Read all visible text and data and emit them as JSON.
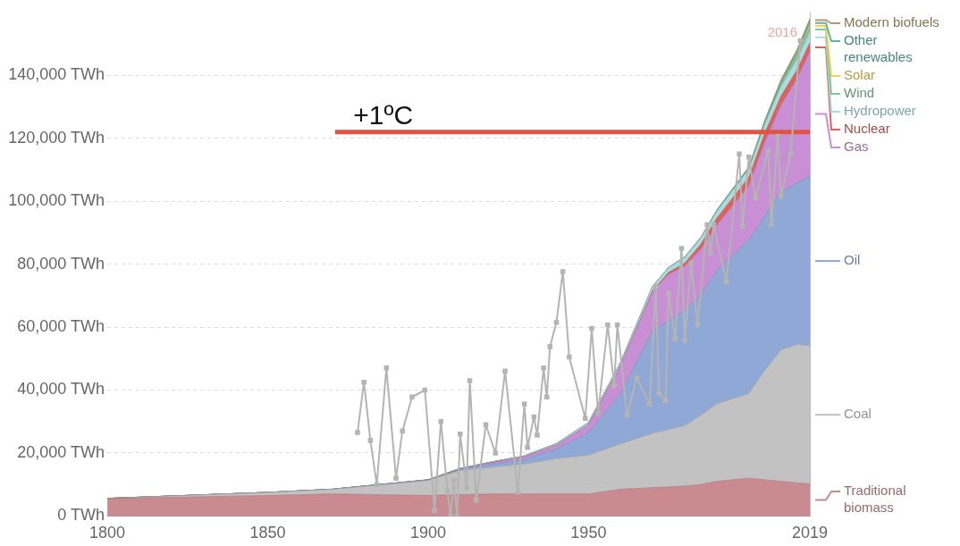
{
  "chart_data": {
    "type": "area",
    "stacked": true,
    "x": [
      1800,
      1850,
      1870,
      1900,
      1910,
      1920,
      1930,
      1940,
      1950,
      1960,
      1970,
      1975,
      1980,
      1985,
      1990,
      2000,
      2005,
      2010,
      2015,
      2019
    ],
    "xlim": [
      1800,
      2019
    ],
    "xticks": [
      1800,
      1850,
      1900,
      1950,
      2019
    ],
    "ylim": [
      0,
      160000
    ],
    "yticks": [
      {
        "value": 0,
        "label": "0 TWh"
      },
      {
        "value": 20000,
        "label": "20,000 TWh"
      },
      {
        "value": 40000,
        "label": "40,000 TWh"
      },
      {
        "value": 60000,
        "label": "60,000 TWh"
      },
      {
        "value": 80000,
        "label": "80,000 TWh"
      },
      {
        "value": 100000,
        "label": "100,000 TWh"
      },
      {
        "value": 120000,
        "label": "120,000 TWh"
      },
      {
        "value": 140000,
        "label": "140,000 TWh"
      }
    ],
    "grid": "y",
    "legend": "right",
    "series": [
      {
        "name": "Traditional\nbiomass",
        "color": "#c98b90",
        "values": [
          5500,
          6500,
          7000,
          6500,
          6800,
          7000,
          7000,
          7000,
          7000,
          8500,
          9000,
          9200,
          9500,
          10000,
          11000,
          12000,
          11500,
          11000,
          10500,
          10200
        ]
      },
      {
        "name": "Coal",
        "color": "#c2c2c2",
        "values": [
          100,
          1000,
          1500,
          4800,
          7600,
          8500,
          9500,
          11200,
          12300,
          14400,
          17200,
          18300,
          19200,
          22000,
          24600,
          26900,
          34800,
          41700,
          44000,
          43900
        ]
      },
      {
        "name": "Oil",
        "color": "#8fa8d5",
        "values": [
          0,
          0,
          0,
          100,
          400,
          1000,
          1500,
          3100,
          7200,
          16000,
          32800,
          34500,
          36700,
          38100,
          42400,
          48800,
          48900,
          50300,
          51200,
          53800
        ]
      },
      {
        "name": "Gas",
        "color": "#c88fd4",
        "values": [
          0,
          0,
          0,
          100,
          200,
          500,
          800,
          1200,
          2500,
          9000,
          12300,
          14800,
          13900,
          14600,
          14400,
          17200,
          23700,
          27500,
          33200,
          39600
        ]
      },
      {
        "name": "Nuclear",
        "color": "#e0625c",
        "values": [
          0,
          0,
          0,
          0,
          0,
          0,
          0,
          0,
          0,
          0,
          300,
          600,
          1000,
          1600,
          2200,
          2700,
          2800,
          2800,
          2800,
          2800
        ]
      },
      {
        "name": "Hydropower",
        "color": "#a8dde0",
        "values": [
          0,
          0,
          0,
          0,
          100,
          200,
          300,
          500,
          700,
          900,
          1300,
          1500,
          1800,
          2000,
          2200,
          2600,
          2900,
          3100,
          3300,
          3500
        ]
      },
      {
        "name": "Wind",
        "color": "#80c89c",
        "values": [
          0,
          0,
          0,
          0,
          0,
          0,
          0,
          0,
          0,
          0,
          0,
          0,
          0,
          0,
          0,
          100,
          300,
          700,
          1100,
          1500
        ]
      },
      {
        "name": "Solar",
        "color": "#f0d058",
        "values": [
          0,
          0,
          0,
          0,
          0,
          0,
          0,
          0,
          0,
          0,
          0,
          0,
          0,
          0,
          0,
          0,
          0,
          100,
          400,
          800
        ]
      },
      {
        "name": "Other\nrenewables",
        "color": "#5eb3ab",
        "values": [
          0,
          0,
          0,
          0,
          0,
          0,
          0,
          0,
          0,
          0,
          100,
          100,
          200,
          200,
          300,
          500,
          600,
          700,
          900,
          1000
        ]
      },
      {
        "name": "Modern biofuels",
        "color": "#b49a6a",
        "values": [
          0,
          0,
          0,
          0,
          0,
          0,
          0,
          0,
          0,
          0,
          0,
          0,
          0,
          0,
          100,
          200,
          400,
          700,
          800,
          900
        ]
      },
      {
        "type": "line",
        "color": "#b4b4b4",
        "marker": "square",
        "x": [
          1878,
          1880,
          1882,
          1884,
          1887,
          1890,
          1892,
          1895,
          1899,
          1902,
          1904,
          1906,
          1907,
          1908,
          1909,
          1910,
          1912,
          1913,
          1915,
          1918,
          1921,
          1924,
          1928,
          1930,
          1931,
          1933,
          1934,
          1936,
          1937,
          1938,
          1940,
          1942,
          1944,
          1949,
          1951,
          1953,
          1956,
          1958,
          1959,
          1962,
          1965,
          1969,
          1971,
          1972,
          1974,
          1975,
          1977,
          1979,
          1980,
          1982,
          1984,
          1987,
          1988,
          1989,
          1993,
          1997,
          1998,
          2000,
          2002,
          2006,
          2007,
          2009,
          2010,
          2013,
          2016
        ],
        "values": [
          26500,
          42500,
          24000,
          10000,
          47000,
          12000,
          27000,
          37800,
          40000,
          1700,
          30000,
          8000,
          0,
          11300,
          0,
          26000,
          9000,
          43000,
          5000,
          29000,
          20000,
          46000,
          7500,
          35600,
          21800,
          31500,
          25700,
          47000,
          37800,
          53800,
          61500,
          77600,
          50500,
          31000,
          59600,
          32600,
          60700,
          41400,
          60700,
          32000,
          44000,
          35600,
          72900,
          39000,
          36700,
          70700,
          56300,
          85000,
          55800,
          80300,
          60700,
          92500,
          83400,
          92500,
          74500,
          115000,
          92000,
          114000,
          101000,
          116000,
          92500,
          120600,
          101600,
          115000,
          151000
        ]
      },
      {
        "type": "line",
        "color": "#e05444",
        "x": [
          1871,
          2019
        ],
        "values": [
          122000,
          122000
        ]
      }
    ],
    "annotations": [
      {
        "text": "+1ºC",
        "x": 1886,
        "y": 122000
      },
      "2016"
    ]
  }
}
